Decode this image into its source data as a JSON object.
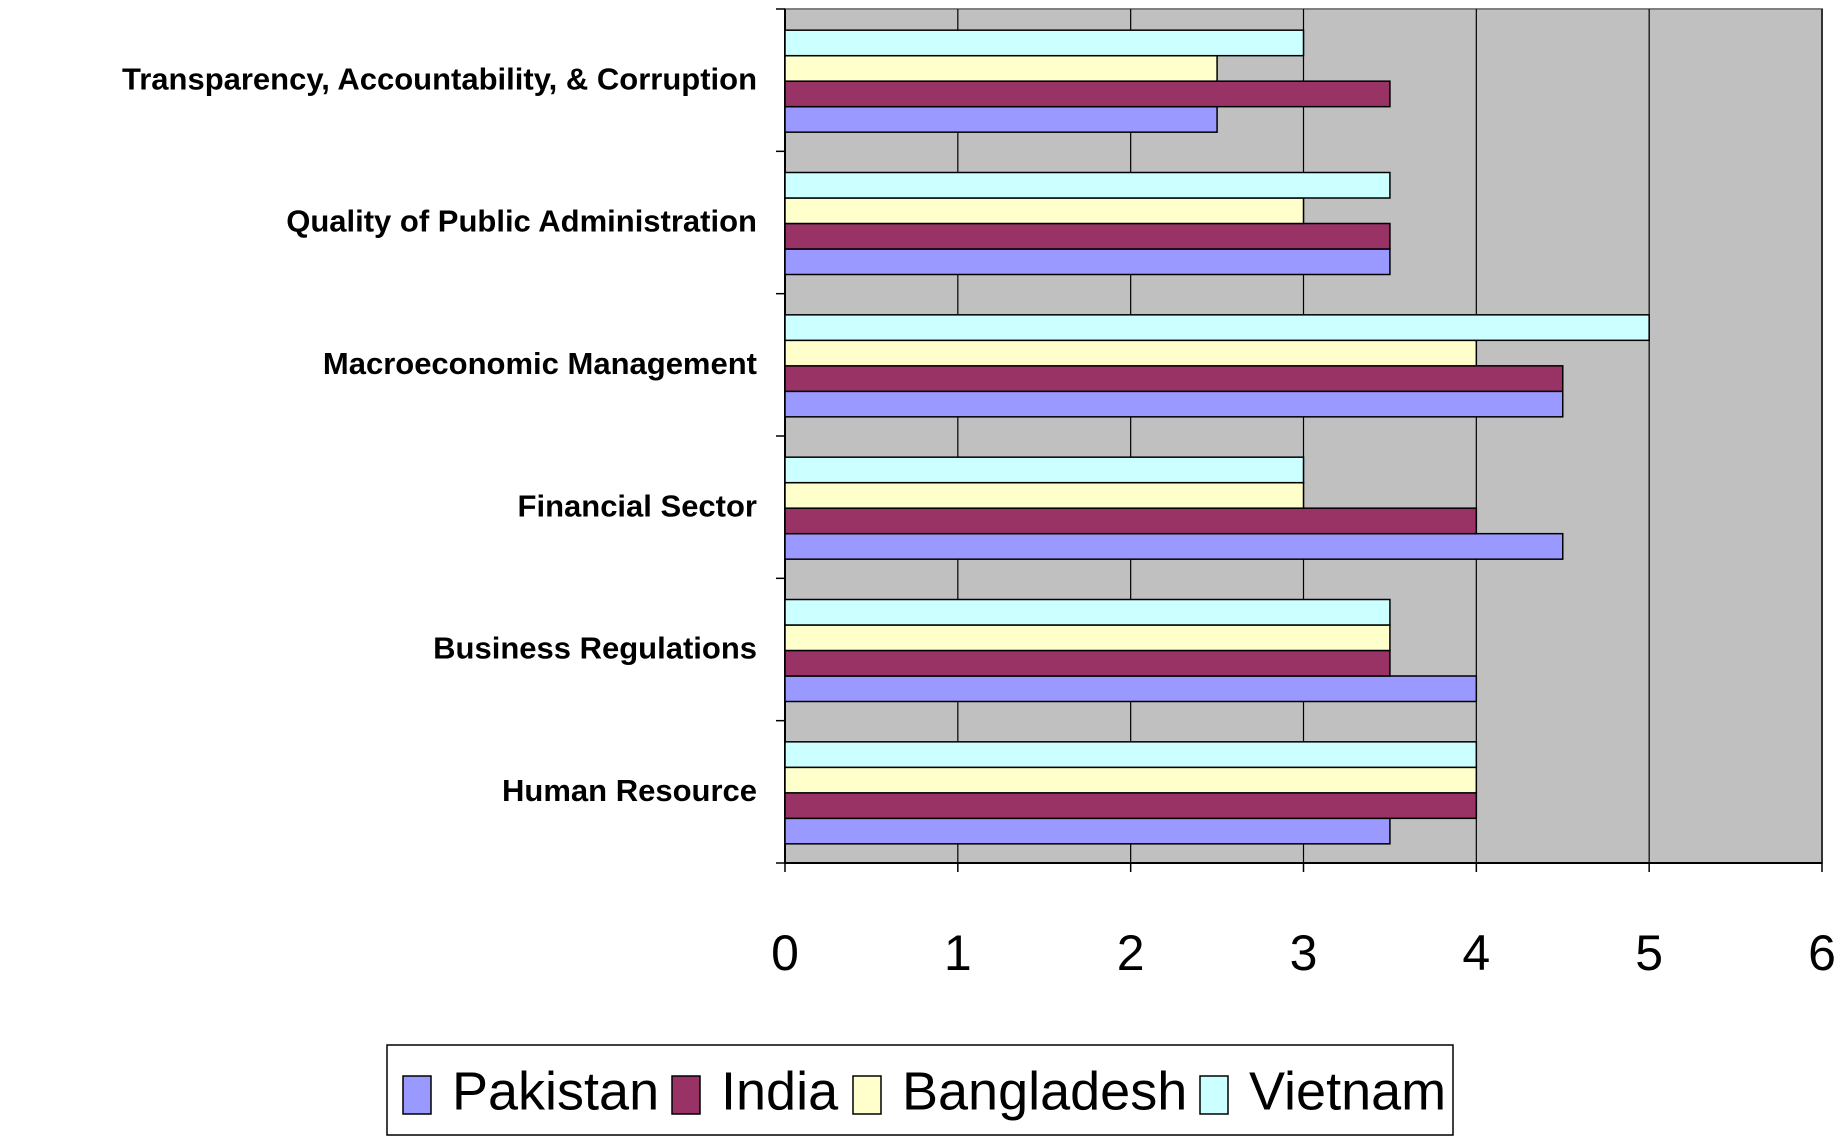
{
  "chart_data": {
    "type": "hbar",
    "categories": [
      "Human Resource",
      "Business Regulations",
      "Financial Sector",
      "Macroeconomic Management",
      "Quality of Public Administration",
      "Transparency, Accountability, & Corruption"
    ],
    "series": [
      {
        "name": "Pakistan",
        "color": "#9999ff",
        "values": [
          3.5,
          4,
          4.5,
          4.5,
          3.5,
          2.5
        ]
      },
      {
        "name": "India",
        "color": "#993366",
        "values": [
          4,
          3.5,
          4,
          4.5,
          3.5,
          3.5
        ]
      },
      {
        "name": "Bangladesh",
        "color": "#ffffcc",
        "values": [
          4,
          3.5,
          3,
          4,
          3,
          2.5
        ]
      },
      {
        "name": "Vietnam",
        "color": "#ccffff",
        "values": [
          4,
          3.5,
          3,
          5,
          3.5,
          3
        ]
      }
    ],
    "xlim": [
      0,
      6
    ],
    "xticks": [
      0,
      1,
      2,
      3,
      4,
      5,
      6
    ],
    "grid": true,
    "legend": "bottom"
  }
}
